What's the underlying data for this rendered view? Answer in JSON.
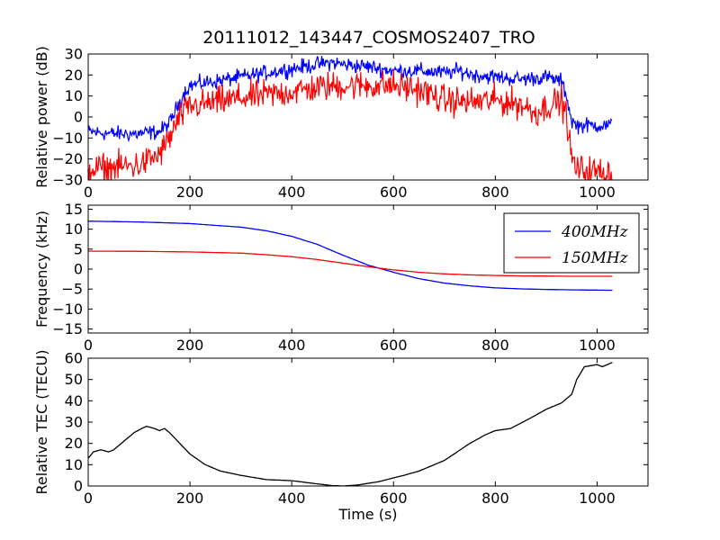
{
  "chart_data": [
    {
      "type": "line",
      "title": "20111012_143447_COSMOS2407_TRO",
      "xlabel": "",
      "ylabel": "Relative power (dB)",
      "xlim": [
        0,
        1100
      ],
      "ylim": [
        -30,
        30
      ],
      "xticks": [
        0,
        200,
        400,
        600,
        800,
        1000
      ],
      "yticks": [
        -30,
        -20,
        -10,
        0,
        10,
        20,
        30
      ],
      "xtick_labels": [
        "0",
        "200",
        "400",
        "600",
        "800",
        "1000"
      ],
      "ytick_labels": [
        "−30",
        "−20",
        "−10",
        "0",
        "10",
        "20",
        "30"
      ],
      "noisy": true,
      "series": [
        {
          "color": "#0000ff",
          "noise": 1.8,
          "x": [
            0,
            50,
            100,
            140,
            160,
            175,
            190,
            200,
            220,
            250,
            300,
            350,
            400,
            450,
            480,
            500,
            550,
            600,
            650,
            700,
            730,
            760,
            800,
            850,
            900,
            930,
            940,
            950,
            960,
            1000,
            1030
          ],
          "y": [
            -7,
            -8,
            -8,
            -7,
            -3,
            5,
            12,
            15,
            16,
            17,
            19,
            21,
            23,
            25,
            26,
            25,
            24,
            22,
            22,
            21,
            22,
            20,
            19,
            18,
            19,
            17,
            10,
            -2,
            -4,
            -4,
            -4
          ]
        },
        {
          "color": "#ff0000",
          "noise": 3.5,
          "x": [
            0,
            50,
            100,
            140,
            160,
            180,
            200,
            250,
            300,
            400,
            450,
            500,
            550,
            600,
            650,
            700,
            750,
            800,
            850,
            880,
            900,
            930,
            940,
            950,
            960,
            1000,
            1030
          ],
          "y": [
            -25,
            -24,
            -23,
            -18,
            -10,
            0,
            5,
            7,
            9,
            12,
            14,
            15,
            15,
            15,
            13,
            8,
            7,
            8,
            6,
            2,
            5,
            8,
            0,
            -20,
            -25,
            -26,
            -27
          ]
        }
      ]
    },
    {
      "type": "line",
      "xlabel": "",
      "ylabel": "Frequency (kHz)",
      "xlim": [
        0,
        1100
      ],
      "ylim": [
        -16,
        16
      ],
      "xticks": [
        0,
        200,
        400,
        600,
        800,
        1000
      ],
      "yticks": [
        -15,
        -10,
        -5,
        0,
        5,
        10,
        15
      ],
      "xtick_labels": [
        "0",
        "200",
        "400",
        "600",
        "800",
        "1000"
      ],
      "ytick_labels": [
        "−15",
        "−10",
        "−5",
        "0",
        "5",
        "10",
        "15"
      ],
      "legend": "top-right",
      "noisy": false,
      "series": [
        {
          "name": "400MHz",
          "color": "#0000ff",
          "x": [
            0,
            100,
            200,
            300,
            350,
            400,
            450,
            500,
            550,
            600,
            650,
            700,
            750,
            800,
            850,
            900,
            950,
            1030
          ],
          "y": [
            12,
            11.8,
            11.4,
            10.5,
            9.6,
            8.2,
            6.2,
            3.5,
            1.0,
            -0.8,
            -2.4,
            -3.5,
            -4.2,
            -4.7,
            -4.95,
            -5.1,
            -5.2,
            -5.3
          ]
        },
        {
          "name": "150MHz",
          "color": "#ff0000",
          "x": [
            0,
            100,
            200,
            300,
            350,
            400,
            450,
            500,
            550,
            600,
            650,
            700,
            750,
            800,
            850,
            900,
            950,
            1030
          ],
          "y": [
            4.5,
            4.45,
            4.3,
            4.0,
            3.6,
            3.1,
            2.4,
            1.5,
            0.6,
            -0.2,
            -0.8,
            -1.2,
            -1.45,
            -1.6,
            -1.7,
            -1.75,
            -1.8,
            -1.8
          ]
        }
      ]
    },
    {
      "type": "line",
      "xlabel": "Time (s)",
      "ylabel": "Relative TEC (TECU)",
      "xlim": [
        0,
        1100
      ],
      "ylim": [
        0,
        60
      ],
      "xticks": [
        0,
        200,
        400,
        600,
        800,
        1000
      ],
      "yticks": [
        0,
        10,
        20,
        30,
        40,
        50,
        60
      ],
      "xtick_labels": [
        "0",
        "200",
        "400",
        "600",
        "800",
        "1000"
      ],
      "ytick_labels": [
        "0",
        "10",
        "20",
        "30",
        "40",
        "50",
        "60"
      ],
      "noisy": false,
      "series": [
        {
          "color": "#000000",
          "x": [
            0,
            10,
            25,
            40,
            50,
            70,
            90,
            105,
            115,
            130,
            140,
            150,
            160,
            180,
            200,
            230,
            260,
            300,
            350,
            400,
            450,
            480,
            500,
            530,
            570,
            620,
            650,
            700,
            750,
            780,
            800,
            830,
            870,
            900,
            930,
            940,
            950,
            960,
            975,
            1000,
            1010,
            1030
          ],
          "y": [
            13,
            16,
            17,
            16,
            17,
            21,
            25,
            27,
            28,
            27,
            26,
            27,
            25,
            20,
            15,
            10,
            7,
            5,
            3,
            2.5,
            1,
            0.2,
            0,
            0.5,
            2,
            5,
            7,
            12,
            20,
            24,
            26,
            27,
            32,
            36,
            39,
            41,
            43,
            50,
            56,
            57,
            56,
            58
          ]
        }
      ]
    }
  ]
}
